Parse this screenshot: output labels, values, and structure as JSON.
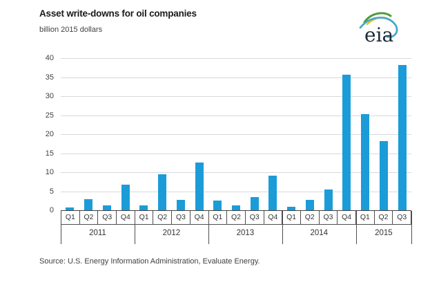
{
  "header": {
    "title": "Asset write-downs for oil companies",
    "subtitle": "billion 2015 dollars",
    "logo_text": "eia"
  },
  "colors": {
    "bar": "#1b9cd8",
    "gridline": "#d9d9d9",
    "axis": "#404040",
    "logo_green": "#4e9c3c",
    "logo_yellow": "#e0c410",
    "logo_blue": "#49a7cd",
    "logo_text": "#1b2a38"
  },
  "chart_data": {
    "type": "bar",
    "title": "Asset write-downs for oil companies",
    "ylabel": "billion 2015 dollars",
    "xlabel": "",
    "grid": true,
    "ylim": [
      0,
      40
    ],
    "yticks": [
      0,
      5,
      10,
      15,
      20,
      25,
      30,
      35,
      40
    ],
    "categories": [
      "2011 Q1",
      "2011 Q2",
      "2011 Q3",
      "2011 Q4",
      "2012 Q1",
      "2012 Q2",
      "2012 Q3",
      "2012 Q4",
      "2013 Q1",
      "2013 Q2",
      "2013 Q3",
      "2013 Q4",
      "2014 Q1",
      "2014 Q2",
      "2014 Q3",
      "2014 Q4",
      "2015 Q1",
      "2015 Q2",
      "2015 Q3"
    ],
    "quarter_labels": [
      "Q1",
      "Q2",
      "Q3",
      "Q4",
      "Q1",
      "Q2",
      "Q3",
      "Q4",
      "Q1",
      "Q2",
      "Q3",
      "Q4",
      "Q1",
      "Q2",
      "Q3",
      "Q4",
      "Q1",
      "Q2",
      "Q3"
    ],
    "year_groups": [
      {
        "year": "2011",
        "count": 4
      },
      {
        "year": "2012",
        "count": 4
      },
      {
        "year": "2013",
        "count": 4
      },
      {
        "year": "2014",
        "count": 4
      },
      {
        "year": "2015",
        "count": 3
      }
    ],
    "values": [
      0.8,
      3.0,
      1.2,
      6.8,
      1.2,
      9.5,
      2.8,
      12.5,
      2.5,
      1.2,
      3.4,
      9.1,
      1.0,
      2.8,
      5.4,
      35.7,
      25.2,
      18.1,
      38.2
    ]
  },
  "footer": {
    "source": "Source:  U.S. Energy Information Administration, Evaluate Energy."
  }
}
